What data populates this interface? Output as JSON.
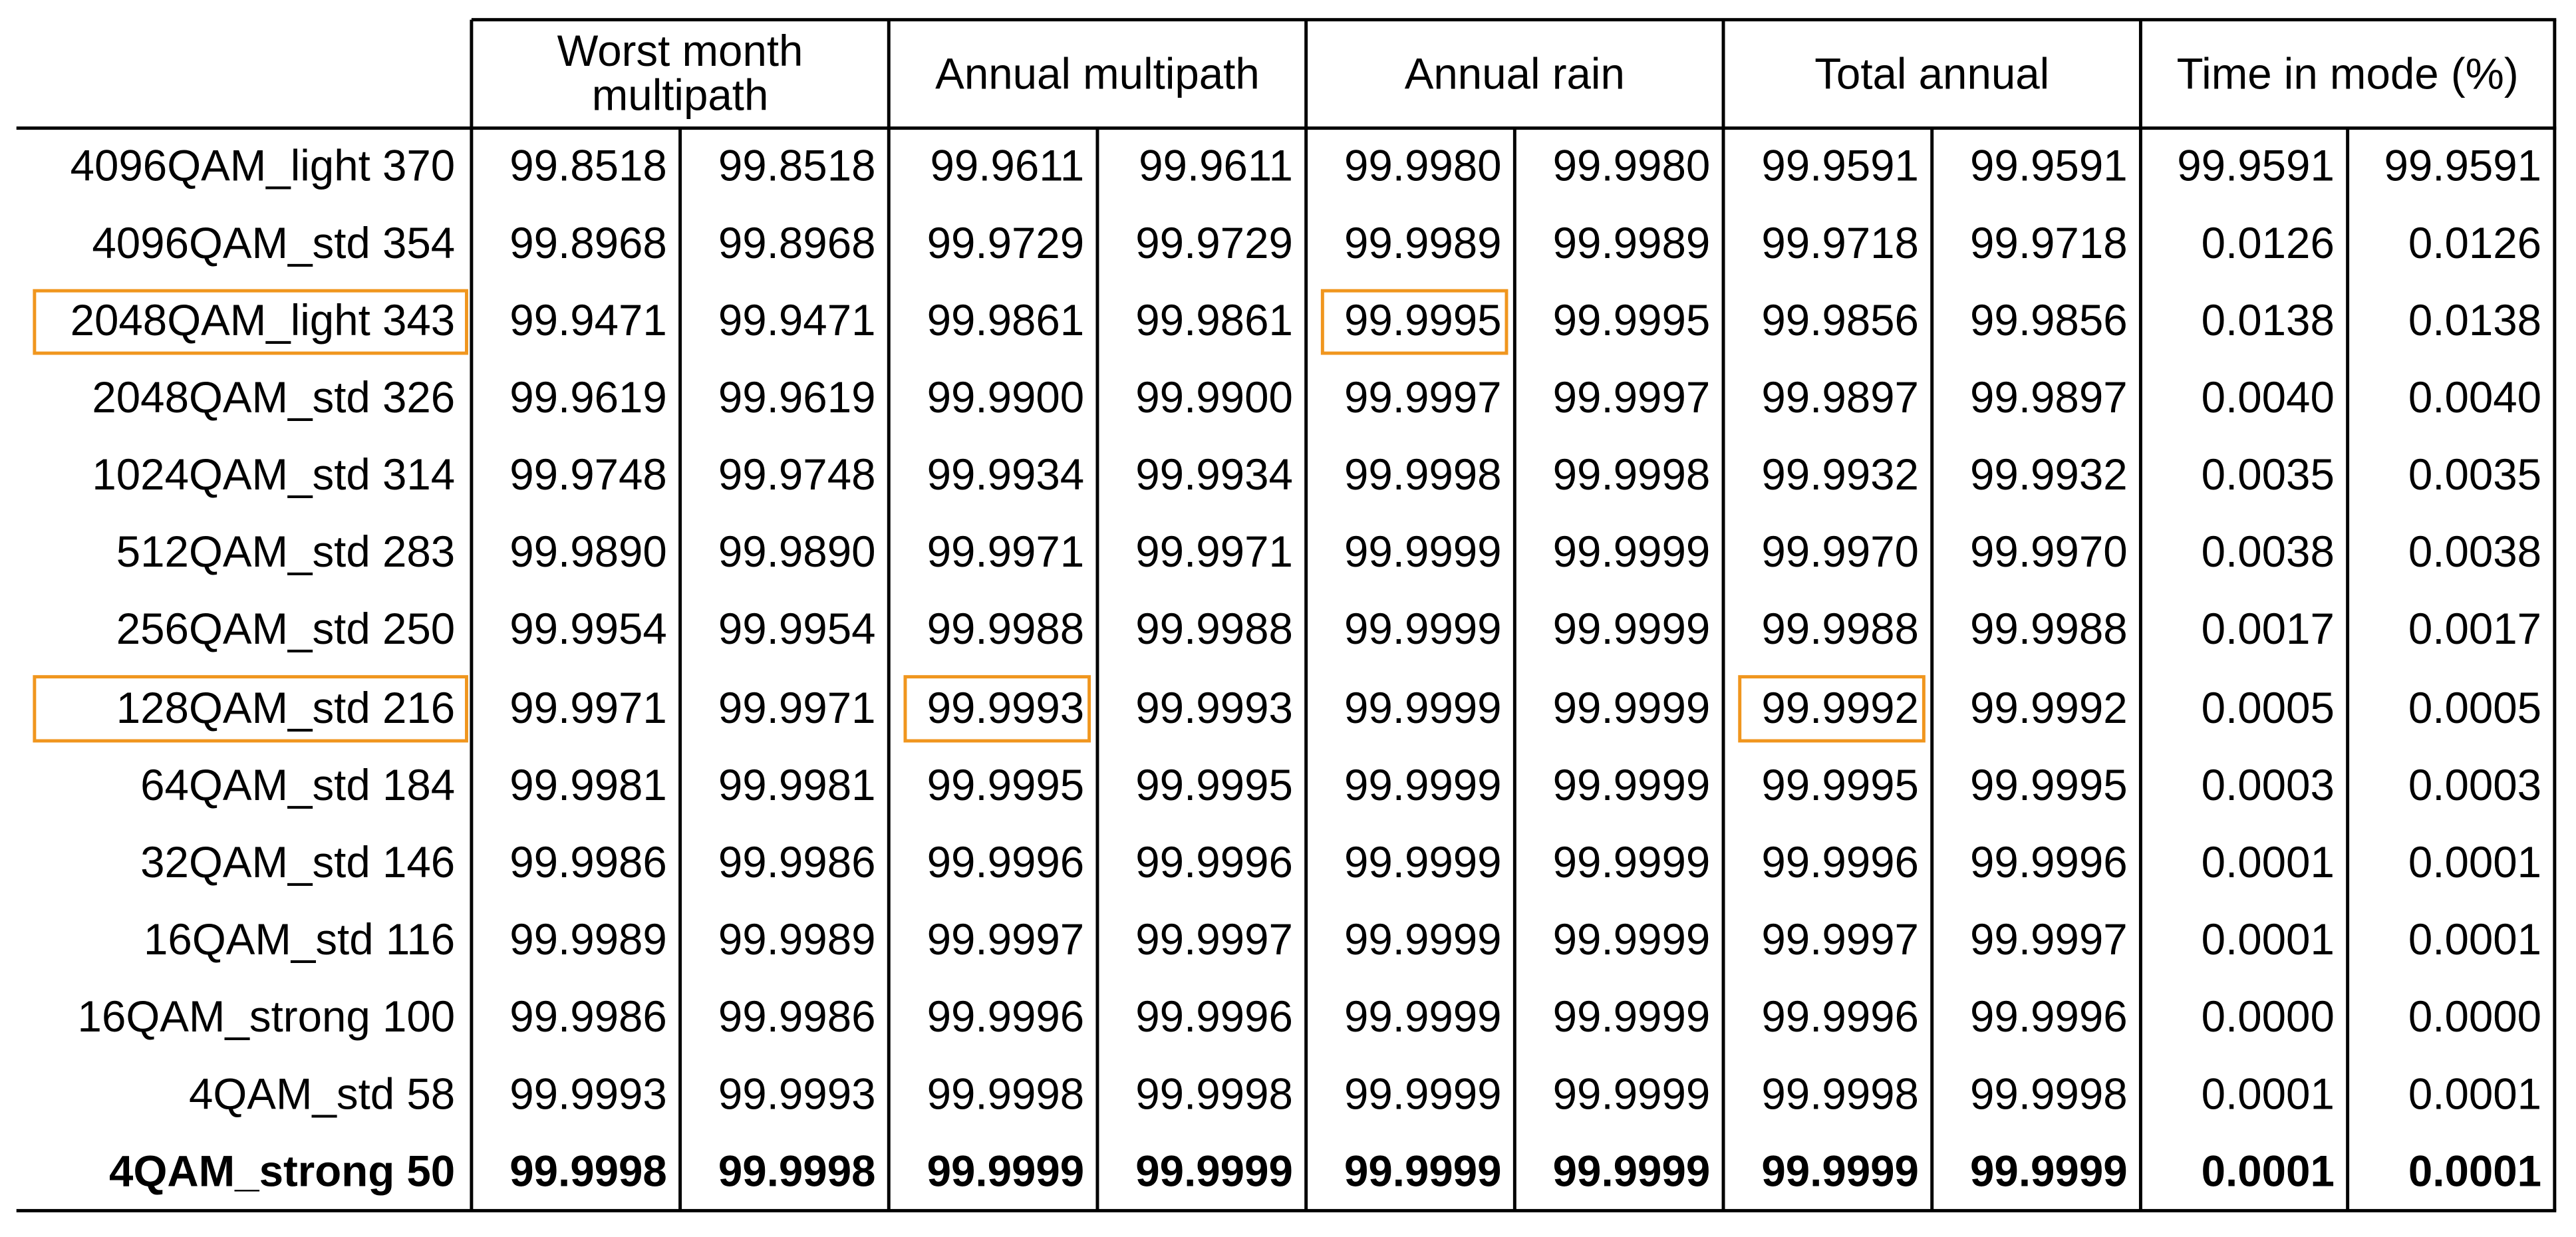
{
  "table": {
    "header": [
      "Worst month multipath",
      "Annual multipath",
      "Annual rain",
      "Total annual",
      "Time in mode (%)"
    ],
    "rows": [
      {
        "label": "4096QAM_light 370",
        "cells": [
          "99.8518",
          "99.8518",
          "99.9611",
          "99.9611",
          "99.9980",
          "99.9980",
          "99.9591",
          "99.9591",
          "99.9591",
          "99.9591"
        ]
      },
      {
        "label": "4096QAM_std 354",
        "cells": [
          "99.8968",
          "99.8968",
          "99.9729",
          "99.9729",
          "99.9989",
          "99.9989",
          "99.9718",
          "99.9718",
          "0.0126",
          "0.0126"
        ]
      },
      {
        "label": "2048QAM_light 343",
        "cells": [
          "99.9471",
          "99.9471",
          "99.9861",
          "99.9861",
          "99.9995",
          "99.9995",
          "99.9856",
          "99.9856",
          "0.0138",
          "0.0138"
        ]
      },
      {
        "label": "2048QAM_std 326",
        "cells": [
          "99.9619",
          "99.9619",
          "99.9900",
          "99.9900",
          "99.9997",
          "99.9997",
          "99.9897",
          "99.9897",
          "0.0040",
          "0.0040"
        ]
      },
      {
        "label": "1024QAM_std 314",
        "cells": [
          "99.9748",
          "99.9748",
          "99.9934",
          "99.9934",
          "99.9998",
          "99.9998",
          "99.9932",
          "99.9932",
          "0.0035",
          "0.0035"
        ]
      },
      {
        "label": "512QAM_std 283",
        "cells": [
          "99.9890",
          "99.9890",
          "99.9971",
          "99.9971",
          "99.9999",
          "99.9999",
          "99.9970",
          "99.9970",
          "0.0038",
          "0.0038"
        ]
      },
      {
        "label": "256QAM_std 250",
        "cells": [
          "99.9954",
          "99.9954",
          "99.9988",
          "99.9988",
          "99.9999",
          "99.9999",
          "99.9988",
          "99.9988",
          "0.0017",
          "0.0017"
        ]
      },
      {
        "label": "128QAM_std 216",
        "cells": [
          "99.9971",
          "99.9971",
          "99.9993",
          "99.9993",
          "99.9999",
          "99.9999",
          "99.9992",
          "99.9992",
          "0.0005",
          "0.0005"
        ]
      },
      {
        "label": "64QAM_std 184",
        "cells": [
          "99.9981",
          "99.9981",
          "99.9995",
          "99.9995",
          "99.9999",
          "99.9999",
          "99.9995",
          "99.9995",
          "0.0003",
          "0.0003"
        ]
      },
      {
        "label": "32QAM_std 146",
        "cells": [
          "99.9986",
          "99.9986",
          "99.9996",
          "99.9996",
          "99.9999",
          "99.9999",
          "99.9996",
          "99.9996",
          "0.0001",
          "0.0001"
        ]
      },
      {
        "label": "16QAM_std 116",
        "cells": [
          "99.9989",
          "99.9989",
          "99.9997",
          "99.9997",
          "99.9999",
          "99.9999",
          "99.9997",
          "99.9997",
          "0.0001",
          "0.0001"
        ]
      },
      {
        "label": "16QAM_strong 100",
        "cells": [
          "99.9986",
          "99.9986",
          "99.9996",
          "99.9996",
          "99.9999",
          "99.9999",
          "99.9996",
          "99.9996",
          "0.0000",
          "0.0000"
        ]
      },
      {
        "label": "4QAM_std 58",
        "cells": [
          "99.9993",
          "99.9993",
          "99.9998",
          "99.9998",
          "99.9999",
          "99.9999",
          "99.9998",
          "99.9998",
          "0.0001",
          "0.0001"
        ]
      },
      {
        "label": "4QAM_strong 50",
        "bold": true,
        "cells": [
          "99.9998",
          "99.9998",
          "99.9999",
          "99.9999",
          "99.9999",
          "99.9999",
          "99.9999",
          "99.9999",
          "0.0001",
          "0.0001"
        ]
      }
    ],
    "highlights": [
      {
        "row": 2,
        "cell": "label"
      },
      {
        "row": 2,
        "cell": 4
      },
      {
        "row": 7,
        "cell": "label"
      },
      {
        "row": 7,
        "cell": 2
      },
      {
        "row": 7,
        "cell": 6
      }
    ],
    "highlight_color": "#f0961e"
  }
}
